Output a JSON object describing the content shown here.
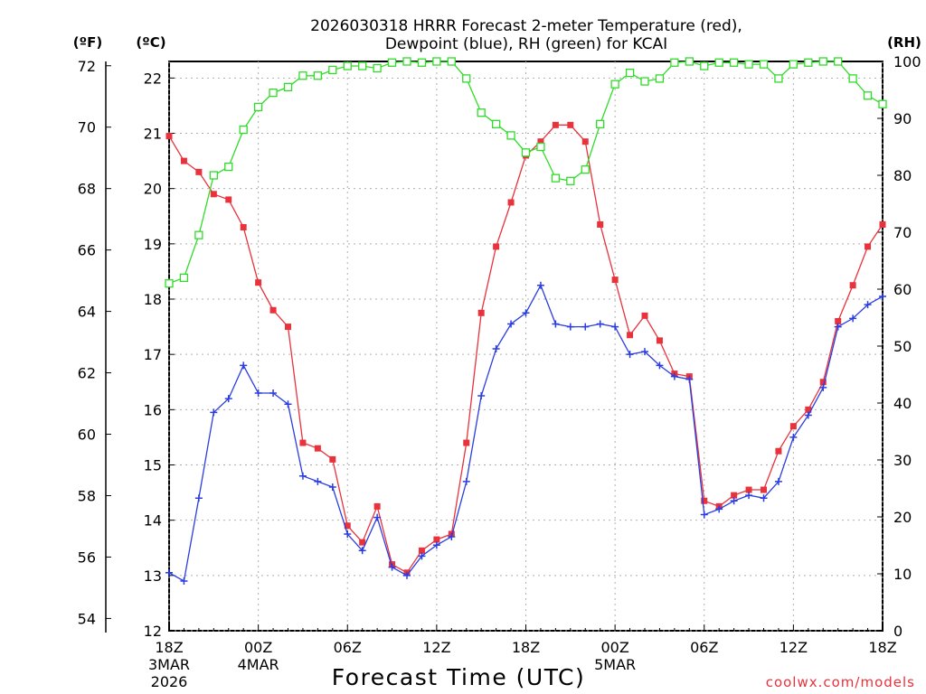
{
  "chart_data": {
    "type": "line",
    "title_line1": "2026030318 HRRR Forecast 2-meter Temperature (red),",
    "title_line2": "Dewpoint (blue), RH (green) for KCAI",
    "left_unit_f": "(ºF)",
    "left_unit_c": "(ºC)",
    "right_unit": "(RH)",
    "xlabel": "Forecast Time (UTC)",
    "credit": "coolwx.com/models",
    "hour_range": [
      0,
      48
    ],
    "temp_c_range": [
      12,
      22.3
    ],
    "rh_range": [
      0,
      100
    ],
    "f_ticks": [
      "54",
      "56",
      "58",
      "60",
      "62",
      "64",
      "66",
      "68",
      "70",
      "72"
    ],
    "c_ticks": [
      "12",
      "13",
      "14",
      "15",
      "16",
      "17",
      "18",
      "19",
      "20",
      "21",
      "22"
    ],
    "rh_ticks": [
      "0",
      "10",
      "20",
      "30",
      "40",
      "50",
      "60",
      "70",
      "80",
      "90",
      "100"
    ],
    "x_ticks": [
      {
        "hour": 0,
        "label": "18Z",
        "sub1": "3MAR",
        "sub2": "2026"
      },
      {
        "hour": 6,
        "label": "00Z",
        "sub1": "4MAR",
        "sub2": ""
      },
      {
        "hour": 12,
        "label": "06Z",
        "sub1": "",
        "sub2": ""
      },
      {
        "hour": 18,
        "label": "12Z",
        "sub1": "",
        "sub2": ""
      },
      {
        "hour": 24,
        "label": "18Z",
        "sub1": "",
        "sub2": ""
      },
      {
        "hour": 30,
        "label": "00Z",
        "sub1": "5MAR",
        "sub2": ""
      },
      {
        "hour": 36,
        "label": "06Z",
        "sub1": "",
        "sub2": ""
      },
      {
        "hour": 42,
        "label": "12Z",
        "sub1": "",
        "sub2": ""
      },
      {
        "hour": 48,
        "label": "18Z",
        "sub1": "",
        "sub2": ""
      }
    ],
    "series": [
      {
        "name": "Temperature",
        "unit": "C",
        "color": "#e8323c",
        "marker": "filled-square",
        "values": [
          20.95,
          20.5,
          20.3,
          19.9,
          19.8,
          19.3,
          18.3,
          17.8,
          17.5,
          15.4,
          15.3,
          15.1,
          13.9,
          13.6,
          14.25,
          13.2,
          13.05,
          13.45,
          13.65,
          13.75,
          15.4,
          17.75,
          18.95,
          19.75,
          20.6,
          20.85,
          21.15,
          21.15,
          20.85,
          19.35,
          18.35,
          17.35,
          17.7,
          17.25,
          16.65,
          16.6,
          14.35,
          14.25,
          14.45,
          14.55,
          14.55,
          15.25,
          15.7,
          16.0,
          16.5,
          17.6,
          18.25,
          18.95,
          19.35
        ]
      },
      {
        "name": "Dewpoint",
        "unit": "C",
        "color": "#2b3de0",
        "marker": "plus",
        "values": [
          13.05,
          12.9,
          14.4,
          15.95,
          16.2,
          16.8,
          16.3,
          16.3,
          16.1,
          14.8,
          14.7,
          14.6,
          13.75,
          13.45,
          14.05,
          13.15,
          13.0,
          13.35,
          13.55,
          13.7,
          14.7,
          16.25,
          17.1,
          17.55,
          17.75,
          18.25,
          17.55,
          17.5,
          17.5,
          17.55,
          17.5,
          17.0,
          17.05,
          16.8,
          16.6,
          16.55,
          14.1,
          14.2,
          14.35,
          14.45,
          14.4,
          14.7,
          15.5,
          15.9,
          16.4,
          17.5,
          17.65,
          17.9,
          18.05
        ]
      },
      {
        "name": "RH",
        "unit": "%",
        "color": "#2fdc28",
        "marker": "open-square",
        "values": [
          61,
          62,
          69.5,
          80,
          81.5,
          88,
          92,
          94.5,
          95.5,
          97.5,
          97.5,
          98.5,
          99.2,
          99.2,
          98.8,
          99.8,
          100,
          99.8,
          100,
          100,
          97,
          91,
          89,
          87,
          84,
          85,
          79.5,
          79,
          81,
          89,
          96,
          98,
          96.5,
          97,
          99.8,
          100,
          99.2,
          99.8,
          99.8,
          99.5,
          99.5,
          97,
          99.5,
          99.8,
          100,
          100,
          97,
          94,
          92.5
        ]
      }
    ]
  }
}
